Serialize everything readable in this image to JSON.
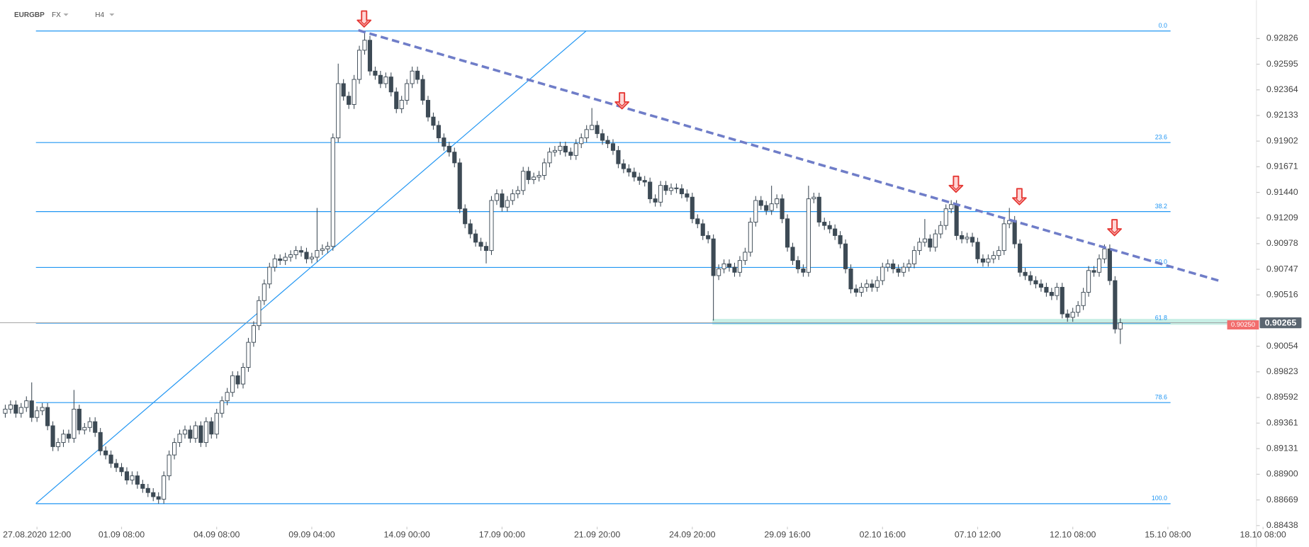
{
  "chart_data": {
    "type": "candlestick",
    "symbol": "EURGBP",
    "market": "FX",
    "timeframe": "H4",
    "bull_color": "#ffffff",
    "bear_color": "#3d4a55",
    "wick_color": "#3d4a55",
    "fib_color": "#2196f3",
    "trendline_color": "#6f7dc8",
    "signal_color": "#e53935",
    "zone_color": "#b9eadf",
    "xlim": [
      -1,
      246.7
    ],
    "xticks": [
      {
        "value": 6,
        "label": "27.08.2020  12:00"
      },
      {
        "value": 22,
        "label": "01.09  08:00"
      },
      {
        "value": 40,
        "label": "04.09  08:00"
      },
      {
        "value": 58,
        "label": "09.09  04:00"
      },
      {
        "value": 76,
        "label": "14.09  00:00"
      },
      {
        "value": 94,
        "label": "17.09  00:00"
      },
      {
        "value": 112,
        "label": "21.09  20:00"
      },
      {
        "value": 130,
        "label": "24.09  20:00"
      },
      {
        "value": 148,
        "label": "29.09  16:00"
      },
      {
        "value": 166,
        "label": "02.10  16:00"
      },
      {
        "value": 184,
        "label": "07.10  12:00"
      },
      {
        "value": 202,
        "label": "12.10  08:00"
      },
      {
        "value": 220,
        "label": "15.10  08:00"
      },
      {
        "value": 238,
        "label": "18.10  08:00"
      }
    ],
    "ylim": [
      0.88438,
      0.93172
    ],
    "yticks": [
      0.92826,
      0.92595,
      0.92364,
      0.92133,
      0.91902,
      0.91671,
      {
        "value": 0.9144,
        "label": "0.91440"
      },
      0.91209,
      0.90978,
      0.90747,
      0.90516,
      0.90054,
      0.89823,
      0.89592,
      0.89361,
      0.89131,
      {
        "value": 0.889,
        "label": "0.88900"
      },
      0.88669,
      0.88438
    ],
    "open": [
      0.8945,
      0.89487,
      0.89525,
      0.8945,
      0.89502,
      0.89562,
      0.89412,
      0.89472,
      0.89502,
      0.89337,
      0.89149,
      0.89186,
      0.89262,
      0.89224,
      0.89487,
      0.89299,
      0.89322,
      0.89374,
      0.89277,
      0.89111,
      0.89074,
      0.88998,
      0.88961,
      0.88923,
      0.88848,
      0.88886,
      0.8881,
      0.88773,
      0.88735,
      0.88698,
      0.88675,
      0.88886,
      0.89074,
      0.89186,
      0.89262,
      0.89299,
      0.89224,
      0.89337,
      0.89186,
      0.89374,
      0.89262,
      0.8945,
      0.89562,
      0.89638,
      0.89788,
      0.89713,
      0.89863,
      0.90089,
      0.90239,
      0.90465,
      0.90615,
      0.90766,
      0.90841,
      0.90826,
      0.90856,
      0.90878,
      0.90916,
      0.90901,
      0.90841,
      0.90856,
      0.90916,
      0.90931,
      0.90954,
      0.91931,
      0.9242,
      0.92307,
      0.92232,
      0.92458,
      0.92721,
      0.92811,
      0.92533,
      0.92495,
      0.9242,
      0.9248,
      0.92345,
      0.92194,
      0.9227,
      0.9242,
      0.92533,
      0.92458,
      0.9227,
      0.92119,
      0.92044,
      0.91931,
      0.91856,
      0.91803,
      0.91706,
      0.91292,
      0.91157,
      0.91066,
      0.90991,
      0.90954,
      0.90916,
      0.91367,
      0.91427,
      0.91307,
      0.91367,
      0.91427,
      0.91457,
      0.9163,
      0.91555,
      0.91578,
      0.91593,
      0.91706,
      0.91803,
      0.91818,
      0.91856,
      0.91803,
      0.91773,
      0.91879,
      0.91931,
      0.92006,
      0.92044,
      0.91969,
      0.91909,
      0.91879,
      0.91818,
      0.91698,
      0.91653,
      0.91623,
      0.91578,
      0.91548,
      0.91533,
      0.91382,
      0.91352,
      0.91503,
      0.91457,
      0.9148,
      0.91473,
      0.91427,
      0.91397,
      0.91202,
      0.91157,
      0.91051,
      0.91021,
      0.9069,
      0.90751,
      0.90796,
      0.90766,
      0.9072,
      0.90826,
      0.90901,
      0.91172,
      0.91367,
      0.91322,
      0.91277,
      0.91337,
      0.91382,
      0.91202,
      0.90946,
      0.90826,
      0.90751,
      0.9072,
      0.91382,
      0.91397,
      0.91172,
      0.91142,
      0.91111,
      0.91051,
      0.90976,
      0.90751,
      0.9057,
      0.9054,
      0.90585,
      0.90615,
      0.90585,
      0.90645,
      0.90766,
      0.90796,
      0.90751,
      0.9072,
      0.90766,
      0.90796,
      0.90916,
      0.90991,
      0.91021,
      0.90946,
      0.91066,
      0.91142,
      0.91292,
      0.9133,
      0.91051,
      0.91021,
      0.91036,
      0.90991,
      0.90841,
      0.90811,
      0.90841,
      0.90871,
      0.90916,
      0.91157,
      0.91187,
      0.90976,
      0.9072,
      0.9069,
      0.90645,
      0.90615,
      0.90585,
      0.9054,
      0.9051,
      0.90585,
      0.90345,
      0.90314,
      0.9036,
      0.9042,
      0.9054,
      0.90736,
      0.9072,
      0.90841,
      0.90931,
      0.90645,
      0.90209
    ],
    "high": [
      0.89527,
      0.89565,
      0.89565,
      0.89542,
      0.89602,
      0.89728,
      0.89512,
      0.89542,
      0.89542,
      0.89377,
      0.89226,
      0.89302,
      0.89302,
      0.8966,
      0.89527,
      0.89362,
      0.89414,
      0.89414,
      0.89317,
      0.89151,
      0.89114,
      0.89038,
      0.89001,
      0.88963,
      0.88926,
      0.88926,
      0.8885,
      0.88813,
      0.88775,
      0.88738,
      0.88926,
      0.89114,
      0.89226,
      0.89302,
      0.89339,
      0.89339,
      0.89377,
      0.89377,
      0.89414,
      0.89414,
      0.8949,
      0.89602,
      0.89678,
      0.89828,
      0.89828,
      0.89903,
      0.90129,
      0.90279,
      0.90505,
      0.90655,
      0.90806,
      0.90881,
      0.90881,
      0.90896,
      0.90918,
      0.90956,
      0.90956,
      0.90941,
      0.90896,
      0.913,
      0.90971,
      0.90994,
      0.91971,
      0.926,
      0.9246,
      0.92347,
      0.92498,
      0.92761,
      0.92894,
      0.92851,
      0.92573,
      0.92535,
      0.9252,
      0.9252,
      0.92385,
      0.9231,
      0.9246,
      0.92573,
      0.92573,
      0.92498,
      0.9231,
      0.92159,
      0.92084,
      0.91971,
      0.91896,
      0.91843,
      0.91746,
      0.91332,
      0.91197,
      0.91106,
      0.91031,
      0.90994,
      0.91407,
      0.91467,
      0.91467,
      0.91407,
      0.91467,
      0.91497,
      0.9167,
      0.9167,
      0.91618,
      0.91633,
      0.91746,
      0.91843,
      0.91858,
      0.91896,
      0.91896,
      0.91843,
      0.91919,
      0.91971,
      0.92046,
      0.922,
      0.92084,
      0.92009,
      0.91949,
      0.91919,
      0.91858,
      0.91738,
      0.91693,
      0.91663,
      0.91618,
      0.91588,
      0.91573,
      0.91422,
      0.91543,
      0.91543,
      0.9152,
      0.9152,
      0.91513,
      0.91467,
      0.91437,
      0.91242,
      0.91197,
      0.91091,
      0.91061,
      0.90791,
      0.90836,
      0.90836,
      0.90806,
      0.90866,
      0.90941,
      0.91212,
      0.91407,
      0.91407,
      0.91362,
      0.915,
      0.91422,
      0.91422,
      0.91242,
      0.90986,
      0.90866,
      0.90791,
      0.915,
      0.91437,
      0.91437,
      0.91212,
      0.91182,
      0.91151,
      0.91091,
      0.91016,
      0.90791,
      0.9061,
      0.90625,
      0.90655,
      0.90655,
      0.90685,
      0.90806,
      0.90836,
      0.90836,
      0.90791,
      0.90806,
      0.90836,
      0.90956,
      0.91031,
      0.912,
      0.91061,
      0.91106,
      0.91182,
      0.91332,
      0.9137,
      0.9137,
      0.91091,
      0.91076,
      0.91076,
      0.91031,
      0.90881,
      0.90881,
      0.90911,
      0.90956,
      0.91197,
      0.913,
      0.91227,
      0.91016,
      0.9076,
      0.9073,
      0.90685,
      0.90655,
      0.90625,
      0.9058,
      0.90625,
      0.90625,
      0.90385,
      0.904,
      0.9046,
      0.9058,
      0.90776,
      0.90776,
      0.90881,
      0.90971,
      0.90971,
      0.90685,
      0.90305
    ],
    "low": [
      0.8941,
      0.89447,
      0.8941,
      0.8941,
      0.89462,
      0.89372,
      0.89372,
      0.89432,
      0.89297,
      0.89109,
      0.89109,
      0.89146,
      0.89184,
      0.89184,
      0.89259,
      0.89259,
      0.89282,
      0.89237,
      0.89071,
      0.89034,
      0.88958,
      0.88921,
      0.88883,
      0.88808,
      0.88808,
      0.8877,
      0.88733,
      0.88695,
      0.88658,
      0.88635,
      0.88635,
      0.88846,
      0.89034,
      0.89146,
      0.89222,
      0.89184,
      0.89184,
      0.89146,
      0.89146,
      0.89222,
      0.89222,
      0.8941,
      0.89522,
      0.89598,
      0.89673,
      0.89673,
      0.89823,
      0.90049,
      0.90199,
      0.90425,
      0.90575,
      0.90726,
      0.90786,
      0.90786,
      0.90816,
      0.90838,
      0.90861,
      0.90801,
      0.90801,
      0.90816,
      0.90876,
      0.90891,
      0.90914,
      0.91891,
      0.92267,
      0.92192,
      0.92192,
      0.92418,
      0.92681,
      0.92493,
      0.92455,
      0.9238,
      0.9238,
      0.92305,
      0.92154,
      0.92154,
      0.9223,
      0.9238,
      0.92418,
      0.9223,
      0.92079,
      0.92004,
      0.91891,
      0.91816,
      0.91763,
      0.91666,
      0.91252,
      0.91117,
      0.91026,
      0.90951,
      0.90914,
      0.908,
      0.90876,
      0.91327,
      0.91267,
      0.91267,
      0.91327,
      0.91387,
      0.91417,
      0.91515,
      0.91515,
      0.91538,
      0.91553,
      0.91666,
      0.91763,
      0.91778,
      0.91763,
      0.91733,
      0.91733,
      0.91839,
      0.91891,
      0.92004,
      0.91929,
      0.91869,
      0.91839,
      0.91778,
      0.91658,
      0.91613,
      0.91583,
      0.91538,
      0.91508,
      0.91493,
      0.91342,
      0.91312,
      0.91312,
      0.91417,
      0.91417,
      0.91433,
      0.91387,
      0.91357,
      0.91162,
      0.91117,
      0.91011,
      0.90981,
      0.90285,
      0.9065,
      0.90711,
      0.90726,
      0.9068,
      0.9068,
      0.90786,
      0.90861,
      0.91132,
      0.91282,
      0.91237,
      0.91237,
      0.91297,
      0.91162,
      0.90906,
      0.90786,
      0.90711,
      0.9068,
      0.9068,
      0.91342,
      0.91132,
      0.91102,
      0.91071,
      0.91011,
      0.90936,
      0.90711,
      0.9053,
      0.905,
      0.905,
      0.90545,
      0.90545,
      0.90545,
      0.90605,
      0.90726,
      0.90711,
      0.9068,
      0.9068,
      0.90726,
      0.90756,
      0.90876,
      0.90951,
      0.90906,
      0.90906,
      0.91026,
      0.91102,
      0.91252,
      0.91011,
      0.90981,
      0.90981,
      0.90951,
      0.90801,
      0.90771,
      0.90771,
      0.90801,
      0.90831,
      0.90876,
      0.91117,
      0.90936,
      0.9068,
      0.9065,
      0.90605,
      0.90575,
      0.90545,
      0.905,
      0.9047,
      0.9047,
      0.90305,
      0.90274,
      0.90274,
      0.9032,
      0.9038,
      0.905,
      0.9068,
      0.9068,
      0.90801,
      0.90605,
      0.90169,
      0.90074
    ],
    "close": [
      0.89487,
      0.89525,
      0.8945,
      0.89502,
      0.89562,
      0.89412,
      0.89472,
      0.89502,
      0.89337,
      0.89149,
      0.89186,
      0.89262,
      0.89224,
      0.89487,
      0.89299,
      0.89322,
      0.89374,
      0.89277,
      0.89111,
      0.89074,
      0.88998,
      0.88961,
      0.88923,
      0.88848,
      0.88886,
      0.8881,
      0.88773,
      0.88735,
      0.88698,
      0.88675,
      0.88886,
      0.89074,
      0.89186,
      0.89262,
      0.89299,
      0.89224,
      0.89337,
      0.89186,
      0.89374,
      0.89262,
      0.8945,
      0.89562,
      0.89638,
      0.89788,
      0.89713,
      0.89863,
      0.90089,
      0.90239,
      0.90465,
      0.90615,
      0.90766,
      0.90841,
      0.90826,
      0.90856,
      0.90878,
      0.90916,
      0.90901,
      0.90841,
      0.90856,
      0.90916,
      0.90931,
      0.90954,
      0.91931,
      0.9242,
      0.92307,
      0.92232,
      0.92458,
      0.92721,
      0.92811,
      0.92533,
      0.92495,
      0.9242,
      0.9248,
      0.92345,
      0.92194,
      0.9227,
      0.9242,
      0.92533,
      0.92458,
      0.9227,
      0.92119,
      0.92044,
      0.91931,
      0.91856,
      0.91803,
      0.91706,
      0.91292,
      0.91157,
      0.91066,
      0.90991,
      0.90954,
      0.90916,
      0.91367,
      0.91427,
      0.91307,
      0.91367,
      0.91427,
      0.91457,
      0.9163,
      0.91555,
      0.91578,
      0.91593,
      0.91706,
      0.91803,
      0.91818,
      0.91856,
      0.91803,
      0.91773,
      0.91879,
      0.91931,
      0.92006,
      0.92044,
      0.91969,
      0.91909,
      0.91879,
      0.91818,
      0.91698,
      0.91653,
      0.91623,
      0.91578,
      0.91548,
      0.91533,
      0.91382,
      0.91352,
      0.91503,
      0.91457,
      0.9148,
      0.91473,
      0.91427,
      0.91397,
      0.91202,
      0.91157,
      0.91051,
      0.91021,
      0.9069,
      0.90751,
      0.90796,
      0.90766,
      0.9072,
      0.90826,
      0.90901,
      0.91172,
      0.91367,
      0.91322,
      0.91277,
      0.91337,
      0.91382,
      0.91202,
      0.90946,
      0.90826,
      0.90751,
      0.9072,
      0.91382,
      0.91397,
      0.91172,
      0.91142,
      0.91111,
      0.91051,
      0.90976,
      0.90751,
      0.9057,
      0.9054,
      0.90585,
      0.90615,
      0.90585,
      0.90645,
      0.90766,
      0.90796,
      0.90751,
      0.9072,
      0.90766,
      0.90796,
      0.90916,
      0.90991,
      0.91021,
      0.90946,
      0.91066,
      0.91142,
      0.91292,
      0.9133,
      0.91051,
      0.91021,
      0.91036,
      0.90991,
      0.90841,
      0.90811,
      0.90841,
      0.90871,
      0.90916,
      0.91157,
      0.91187,
      0.90976,
      0.9072,
      0.9069,
      0.90645,
      0.90615,
      0.90585,
      0.9054,
      0.9051,
      0.90585,
      0.90345,
      0.90314,
      0.9036,
      0.9042,
      0.9054,
      0.90736,
      0.9072,
      0.90841,
      0.90931,
      0.90645,
      0.90209,
      0.90265
    ],
    "fibonacci": {
      "x": [
        5.8,
        220.5
      ],
      "levels": [
        {
          "value": 0.92894,
          "label": "0.0"
        },
        {
          "value": 0.91889,
          "label": "23.6"
        },
        {
          "value": 0.91267,
          "label": "38.2"
        },
        {
          "value": 0.90764,
          "label": "50.0"
        },
        {
          "value": 0.90262,
          "label": "61.8"
        },
        {
          "value": 0.89546,
          "label": "78.6"
        },
        {
          "value": 0.88635,
          "label": "100.0"
        }
      ]
    },
    "trendline": {
      "x": [
        66.8,
        230.1
      ],
      "y": [
        0.92901,
        0.90638
      ]
    },
    "uptrend_line": {
      "x": [
        5.8,
        109.9
      ],
      "y": [
        0.88637,
        0.92894
      ]
    },
    "signals": {
      "x": [
        67.9,
        116.7,
        179.9,
        191.9,
        209.9
      ],
      "y": [
        0.92931,
        0.92194,
        0.91442,
        0.9133,
        0.91051
      ]
    },
    "support_zone": {
      "x0": 133.8,
      "y": [
        0.90247,
        0.903
      ]
    },
    "last_price": {
      "value": 0.90265,
      "label": "0.90265"
    },
    "bid_price": {
      "value": 0.9025,
      "label": "0.90250"
    }
  }
}
